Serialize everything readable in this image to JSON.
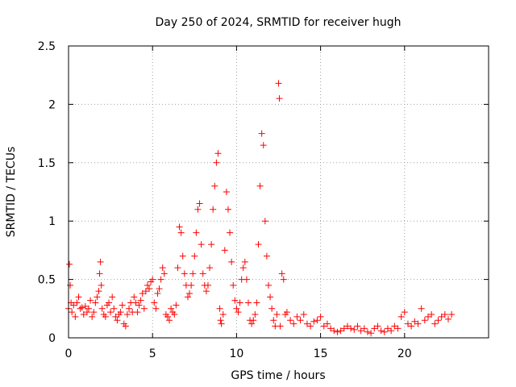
{
  "chart_data": {
    "type": "scatter",
    "title": "Day 250 of 2024, SRMTID for receiver hugh",
    "xlabel": "GPS time / hours",
    "ylabel": "SRMTID / TECUs",
    "xlim": [
      0,
      25
    ],
    "ylim": [
      0,
      2.5
    ],
    "xticks": [
      0,
      5,
      10,
      15,
      20
    ],
    "xtick_labels": [
      "0",
      "5",
      "10",
      "15",
      "20"
    ],
    "yticks": [
      0,
      0.5,
      1,
      1.5,
      2,
      2.5
    ],
    "ytick_labels": [
      "0",
      "0.5",
      "1",
      "1.5",
      "2",
      "2.5"
    ],
    "grid": true,
    "marker": "+",
    "color": "#ff0000",
    "series": [
      {
        "name": "SRMTID",
        "x": [
          0.0,
          0.05,
          0.1,
          0.15,
          0.2,
          0.3,
          0.4,
          0.5,
          0.6,
          0.7,
          0.8,
          0.9,
          1.0,
          1.1,
          1.2,
          1.3,
          1.4,
          1.5,
          1.6,
          1.7,
          1.8,
          1.85,
          1.9,
          1.95,
          2.0,
          2.1,
          2.2,
          2.3,
          2.4,
          2.5,
          2.6,
          2.7,
          2.8,
          2.9,
          3.0,
          3.1,
          3.2,
          3.3,
          3.4,
          3.5,
          3.6,
          3.7,
          3.8,
          3.9,
          4.0,
          4.1,
          4.2,
          4.3,
          4.4,
          4.5,
          4.6,
          4.7,
          4.8,
          4.9,
          5.0,
          5.1,
          5.2,
          5.3,
          5.4,
          5.5,
          5.6,
          5.7,
          5.8,
          5.9,
          6.0,
          6.1,
          6.2,
          6.3,
          6.4,
          6.5,
          6.6,
          6.7,
          6.8,
          6.9,
          7.0,
          7.1,
          7.2,
          7.3,
          7.4,
          7.5,
          7.6,
          7.7,
          7.8,
          7.9,
          8.0,
          8.1,
          8.2,
          8.3,
          8.4,
          8.5,
          8.6,
          8.7,
          8.8,
          8.9,
          9.0,
          9.05,
          9.1,
          9.2,
          9.3,
          9.4,
          9.5,
          9.6,
          9.7,
          9.8,
          9.9,
          10.0,
          10.1,
          10.2,
          10.3,
          10.4,
          10.5,
          10.6,
          10.7,
          10.8,
          10.9,
          11.0,
          11.1,
          11.2,
          11.3,
          11.4,
          11.5,
          11.6,
          11.7,
          11.8,
          11.9,
          12.0,
          12.1,
          12.2,
          12.3,
          12.4,
          12.5,
          12.55,
          12.6,
          12.7,
          12.8,
          12.9,
          13.0,
          13.2,
          13.4,
          13.6,
          13.8,
          14.0,
          14.2,
          14.4,
          14.6,
          14.8,
          15.0,
          15.2,
          15.4,
          15.6,
          15.8,
          16.0,
          16.2,
          16.4,
          16.6,
          16.8,
          17.0,
          17.2,
          17.4,
          17.6,
          17.8,
          18.0,
          18.2,
          18.4,
          18.6,
          18.8,
          19.0,
          19.2,
          19.4,
          19.6,
          19.8,
          20.0,
          20.2,
          20.4,
          20.6,
          20.8,
          21.0,
          21.2,
          21.4,
          21.6,
          21.8,
          22.0,
          22.2,
          22.4,
          22.6,
          22.8
        ],
        "y": [
          0.25,
          0.63,
          0.45,
          0.3,
          0.22,
          0.28,
          0.18,
          0.3,
          0.35,
          0.25,
          0.26,
          0.2,
          0.27,
          0.22,
          0.25,
          0.32,
          0.18,
          0.22,
          0.3,
          0.35,
          0.4,
          0.55,
          0.65,
          0.45,
          0.25,
          0.2,
          0.18,
          0.28,
          0.3,
          0.22,
          0.35,
          0.25,
          0.18,
          0.15,
          0.2,
          0.22,
          0.28,
          0.12,
          0.1,
          0.2,
          0.25,
          0.3,
          0.22,
          0.35,
          0.3,
          0.22,
          0.28,
          0.32,
          0.38,
          0.25,
          0.4,
          0.45,
          0.42,
          0.48,
          0.5,
          0.3,
          0.25,
          0.38,
          0.42,
          0.5,
          0.6,
          0.55,
          0.2,
          0.18,
          0.15,
          0.25,
          0.22,
          0.2,
          0.28,
          0.6,
          0.95,
          0.9,
          0.7,
          0.55,
          0.45,
          0.35,
          0.38,
          0.45,
          0.55,
          0.7,
          0.9,
          1.1,
          1.15,
          0.8,
          0.55,
          0.45,
          0.4,
          0.45,
          0.6,
          0.8,
          1.1,
          1.3,
          1.5,
          1.58,
          0.25,
          0.15,
          0.12,
          0.2,
          0.75,
          1.25,
          1.1,
          0.9,
          0.65,
          0.45,
          0.32,
          0.25,
          0.22,
          0.3,
          0.5,
          0.6,
          0.65,
          0.5,
          0.3,
          0.15,
          0.12,
          0.15,
          0.2,
          0.3,
          0.8,
          1.3,
          1.75,
          1.65,
          1.0,
          0.7,
          0.45,
          0.35,
          0.25,
          0.15,
          0.1,
          0.2,
          2.18,
          2.05,
          0.1,
          0.55,
          0.5,
          0.2,
          0.22,
          0.15,
          0.12,
          0.18,
          0.15,
          0.2,
          0.12,
          0.1,
          0.14,
          0.15,
          0.18,
          0.1,
          0.12,
          0.08,
          0.06,
          0.05,
          0.06,
          0.08,
          0.1,
          0.08,
          0.07,
          0.1,
          0.06,
          0.08,
          0.05,
          0.04,
          0.08,
          0.1,
          0.06,
          0.05,
          0.08,
          0.06,
          0.1,
          0.08,
          0.18,
          0.22,
          0.12,
          0.1,
          0.14,
          0.12,
          0.25,
          0.15,
          0.18,
          0.2,
          0.12,
          0.15,
          0.18,
          0.2,
          0.16,
          0.2
        ]
      }
    ]
  }
}
